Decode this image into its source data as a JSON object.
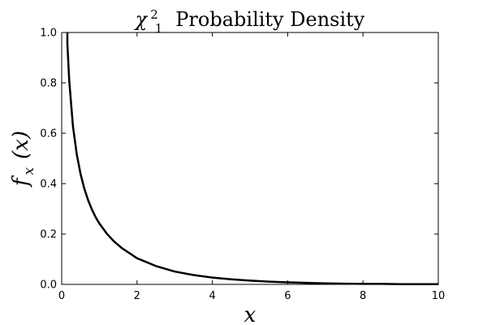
{
  "chart_data": {
    "type": "line",
    "title": {
      "symbol": "χ",
      "superscript": "2",
      "subscript": "1",
      "text": "Probability Density"
    },
    "xlabel": "x",
    "ylabel": {
      "symbol": "f",
      "subscript": "x",
      "arg": "(x)"
    },
    "xlim": [
      0,
      10
    ],
    "ylim": [
      0,
      1.0
    ],
    "x_ticks": [
      "0",
      "2",
      "4",
      "6",
      "8",
      "10"
    ],
    "y_ticks": [
      "0.0",
      "0.2",
      "0.4",
      "0.6",
      "0.8",
      "1.0"
    ],
    "grid": false,
    "legend": "none",
    "line_color": "#000000",
    "series": [
      {
        "x": [
          0.15,
          0.2,
          0.3,
          0.4,
          0.5,
          0.6,
          0.7,
          0.8,
          0.9,
          1.0,
          1.2,
          1.4,
          1.6,
          1.8,
          2.0,
          2.5,
          3.0,
          3.5,
          4.0,
          4.5,
          5.0,
          5.5,
          6.0,
          6.5,
          7.0,
          7.5,
          8.0,
          8.5,
          9.0,
          9.5,
          10.0
        ],
        "y": [
          0.956,
          0.808,
          0.627,
          0.516,
          0.439,
          0.381,
          0.335,
          0.298,
          0.267,
          0.242,
          0.201,
          0.169,
          0.144,
          0.124,
          0.104,
          0.073,
          0.051,
          0.037,
          0.027,
          0.02,
          0.015,
          0.011,
          0.008,
          0.006,
          0.004,
          0.003,
          0.002,
          0.002,
          0.001,
          0.001,
          0.001
        ]
      }
    ]
  }
}
